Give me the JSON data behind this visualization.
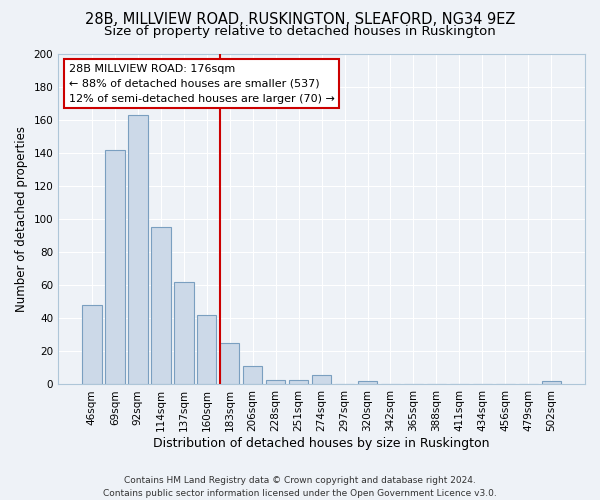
{
  "title": "28B, MILLVIEW ROAD, RUSKINGTON, SLEAFORD, NG34 9EZ",
  "subtitle": "Size of property relative to detached houses in Ruskington",
  "xlabel": "Distribution of detached houses by size in Ruskington",
  "ylabel": "Number of detached properties",
  "bar_labels": [
    "46sqm",
    "69sqm",
    "92sqm",
    "114sqm",
    "137sqm",
    "160sqm",
    "183sqm",
    "206sqm",
    "228sqm",
    "251sqm",
    "274sqm",
    "297sqm",
    "320sqm",
    "342sqm",
    "365sqm",
    "388sqm",
    "411sqm",
    "434sqm",
    "456sqm",
    "479sqm",
    "502sqm"
  ],
  "bar_values": [
    48,
    142,
    163,
    95,
    62,
    42,
    25,
    11,
    3,
    3,
    6,
    0,
    2,
    0,
    0,
    0,
    0,
    0,
    0,
    0,
    2
  ],
  "bar_color": "#ccd9e8",
  "bar_edge_color": "#7a9fc0",
  "vline_color": "#cc0000",
  "vline_index": 6,
  "ylim": [
    0,
    200
  ],
  "yticks": [
    0,
    20,
    40,
    60,
    80,
    100,
    120,
    140,
    160,
    180,
    200
  ],
  "annotation_title": "28B MILLVIEW ROAD: 176sqm",
  "annotation_line1": "← 88% of detached houses are smaller (537)",
  "annotation_line2": "12% of semi-detached houses are larger (70) →",
  "annotation_box_color": "#ffffff",
  "annotation_box_edge": "#cc0000",
  "footer1": "Contains HM Land Registry data © Crown copyright and database right 2024.",
  "footer2": "Contains public sector information licensed under the Open Government Licence v3.0.",
  "title_fontsize": 10.5,
  "subtitle_fontsize": 9.5,
  "xlabel_fontsize": 9,
  "ylabel_fontsize": 8.5,
  "tick_fontsize": 7.5,
  "annotation_fontsize": 8,
  "footer_fontsize": 6.5,
  "background_color": "#eef2f7",
  "grid_color": "#ffffff"
}
